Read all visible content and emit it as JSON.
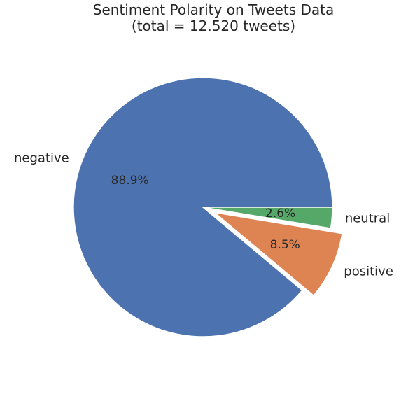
{
  "chart_data": {
    "type": "pie",
    "title": "Sentiment Polarity on Tweets Data",
    "subtitle": "(total = 12.520 tweets)",
    "slices": [
      {
        "label": "negative",
        "value": 88.9,
        "pct_label": "88.9%",
        "color": "#4c72b0",
        "exploded": false
      },
      {
        "label": "positive",
        "value": 8.5,
        "pct_label": "8.5%",
        "color": "#dd8452",
        "exploded": true
      },
      {
        "label": "neutral",
        "value": 2.6,
        "pct_label": "2.6%",
        "color": "#55a868",
        "exploded": false
      }
    ],
    "start_angle_deg": 0,
    "direction": "counterclockwise"
  }
}
